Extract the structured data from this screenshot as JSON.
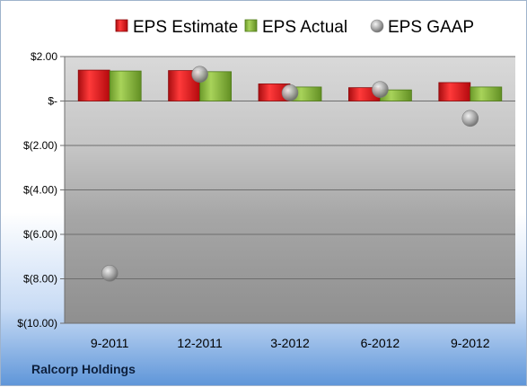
{
  "company_label": "Ralcorp Holdings",
  "chart_data": {
    "type": "bar",
    "categories": [
      "9-2011",
      "12-2011",
      "3-2012",
      "6-2012",
      "9-2012"
    ],
    "series": [
      {
        "name": "EPS Estimate",
        "kind": "bar",
        "color": "#d9161b",
        "values": [
          1.39,
          1.37,
          0.77,
          0.6,
          0.83
        ]
      },
      {
        "name": "EPS Actual",
        "kind": "bar",
        "color": "#8db83f",
        "values": [
          1.35,
          1.32,
          0.63,
          0.5,
          0.63
        ]
      },
      {
        "name": "EPS GAAP",
        "kind": "scatter",
        "color": "#a9a9a9",
        "values": [
          -7.75,
          1.2,
          0.37,
          0.52,
          -0.78
        ]
      }
    ],
    "y_ticks": [
      "$2.00",
      "$-",
      "$(2.00)",
      "$(4.00)",
      "$(6.00)",
      "$(8.00)",
      "$(10.00)"
    ],
    "y_tick_values": [
      2,
      0,
      -2,
      -4,
      -6,
      -8,
      -10
    ],
    "ylim": [
      -10,
      2
    ],
    "grid": true,
    "legend_position": "top"
  }
}
